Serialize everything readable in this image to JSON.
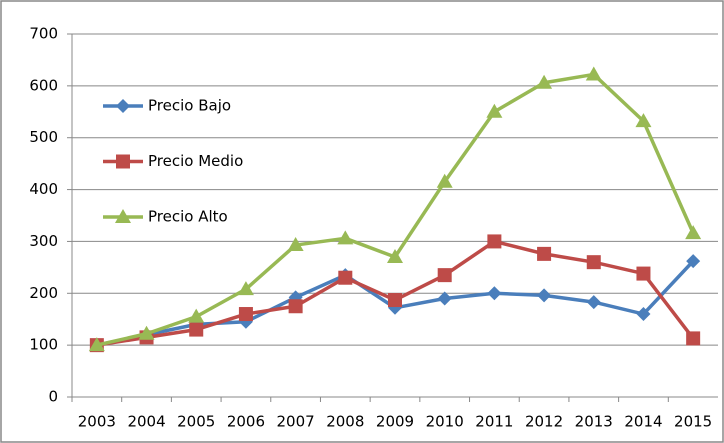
{
  "chart_data": {
    "type": "line",
    "categories": [
      "2003",
      "2004",
      "2005",
      "2006",
      "2007",
      "2008",
      "2009",
      "2010",
      "2011",
      "2012",
      "2013",
      "2014",
      "2015"
    ],
    "series": [
      {
        "name": "Precio Bajo",
        "color": "#4a7ebb",
        "marker": "diamond",
        "values": [
          100,
          120,
          140,
          145,
          192,
          235,
          172,
          190,
          200,
          196,
          183,
          160,
          262
        ]
      },
      {
        "name": "Precio Medio",
        "color": "#be4b48",
        "marker": "square",
        "values": [
          100,
          115,
          130,
          160,
          175,
          230,
          187,
          235,
          300,
          276,
          260,
          238,
          113
        ]
      },
      {
        "name": "Precio Alto",
        "color": "#98b954",
        "marker": "triangle",
        "values": [
          100,
          122,
          155,
          208,
          293,
          306,
          270,
          415,
          550,
          606,
          622,
          532,
          316
        ]
      }
    ],
    "ylim": [
      0,
      700
    ],
    "yticks": [
      0,
      100,
      200,
      300,
      400,
      500,
      600,
      700
    ],
    "grid": true,
    "legend": "left"
  }
}
